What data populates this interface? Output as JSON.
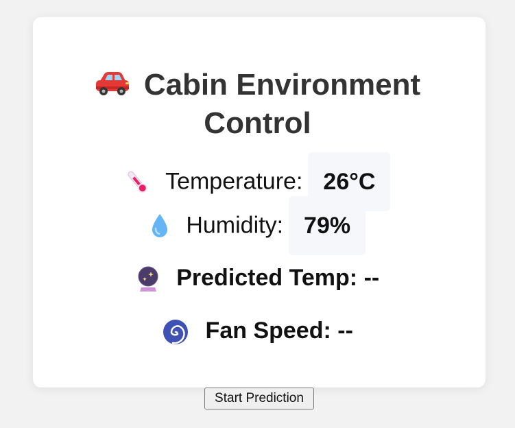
{
  "title": {
    "line1": "Cabin Environment",
    "line2": "Control"
  },
  "temperature": {
    "label": "Temperature:",
    "value": "26°C"
  },
  "humidity": {
    "label": "Humidity:",
    "value": "79%"
  },
  "predicted": {
    "label": "Predicted Temp:",
    "value": "--"
  },
  "fan": {
    "label": "Fan Speed:",
    "value": "--"
  },
  "button": {
    "label": "Start Prediction"
  },
  "icons": {
    "title": "car-icon",
    "temperature": "thermometer-icon",
    "humidity": "droplet-icon",
    "predicted": "crystal-ball-icon",
    "fan": "cyclone-icon"
  },
  "colors": {
    "background": "#f2f2f2",
    "card": "#ffffff",
    "title_text": "#333333",
    "value_box": "#f5f7fa"
  }
}
